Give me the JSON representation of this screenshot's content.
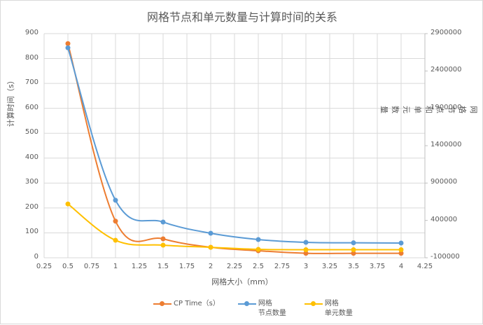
{
  "chart_data": {
    "type": "line",
    "title": "网格节点和单元数量与计算时间的关系",
    "xlabel": "网格大小（mm）",
    "ylabel": "计算时间（s）",
    "y2label": "网格节点和单元数量",
    "x": [
      0.5,
      1,
      1.5,
      2,
      2.5,
      3,
      3.5,
      4
    ],
    "xlim": [
      0.25,
      4.25
    ],
    "xticks": [
      "0.25",
      "0.5",
      "0.75",
      "1",
      "1.25",
      "1.5",
      "1.75",
      "2",
      "2.25",
      "2.5",
      "2.75",
      "3",
      "3.25",
      "3.5",
      "3.75",
      "4",
      "4.25"
    ],
    "ylim": [
      0,
      900
    ],
    "yticks": [
      "0",
      "100",
      "200",
      "300",
      "400",
      "500",
      "600",
      "700",
      "800",
      "900"
    ],
    "y2lim": [
      -100000,
      2900000
    ],
    "y2ticks": [
      "-100000",
      "400000",
      "900000",
      "1400000",
      "1900000",
      "2400000",
      "2900000"
    ],
    "grid": true,
    "legend_position": "bottom",
    "series": [
      {
        "name": "CP Time（s）",
        "axis": "left",
        "color": "#ED7D31",
        "values": [
          860,
          147,
          76,
          42,
          28,
          18,
          18,
          18
        ]
      },
      {
        "name": "网格节点数量",
        "axis": "right",
        "color": "#5B9BD5",
        "values": [
          2710000,
          670000,
          378000,
          228000,
          144000,
          106000,
          100000,
          97000
        ]
      },
      {
        "name": "网格单元数量",
        "axis": "right",
        "color": "#FFC000",
        "values": [
          620000,
          134000,
          69000,
          40000,
          12000,
          8000,
          8000,
          8000
        ]
      }
    ]
  },
  "legend": [
    {
      "line1": "CP Time（s）",
      "line2": ""
    },
    {
      "line1": "网格",
      "line2": "节点数量"
    },
    {
      "line1": "网格",
      "line2": "单元数量"
    }
  ]
}
